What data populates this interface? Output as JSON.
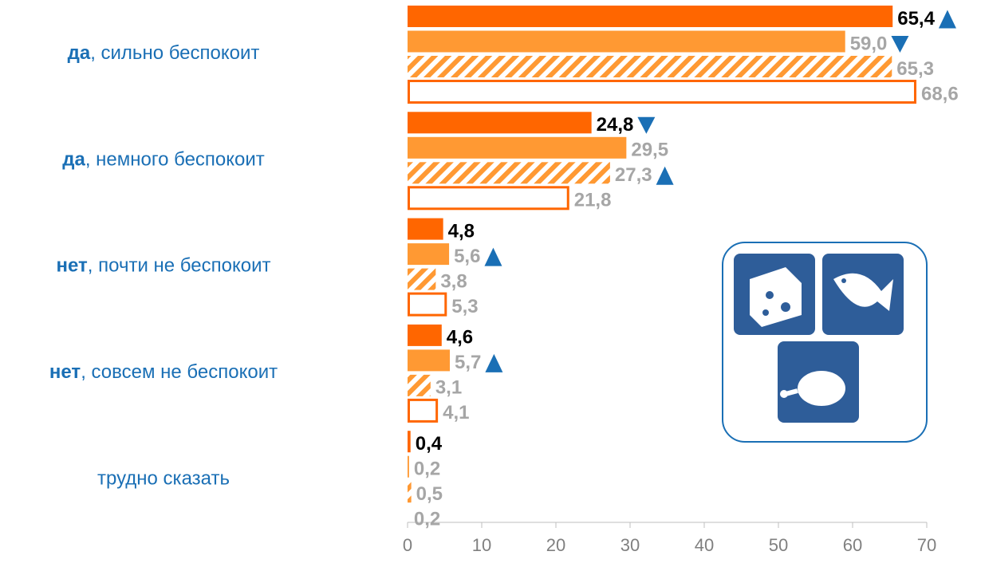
{
  "chart_data": {
    "type": "barh",
    "categories": [
      "да, сильно беспокоит",
      "да, немного беспокоит",
      "нет, почти не беспокоит",
      "нет, совсем не беспокоит",
      "трудно сказать"
    ],
    "series": [
      {
        "color": "#ff6600",
        "style": "solid",
        "values": [
          65.4,
          24.8,
          4.8,
          4.6,
          0.4
        ],
        "value_labels": [
          "65,4",
          "24,8",
          "4,8",
          "4,6",
          "0,4"
        ],
        "arrows": [
          "up",
          "down",
          null,
          null,
          null
        ]
      },
      {
        "color": "#ff9933",
        "style": "solid",
        "values": [
          59.0,
          29.5,
          5.6,
          5.7,
          0.2
        ],
        "value_labels": [
          "59,0",
          "29,5",
          "5,6",
          "5,7",
          "0,2"
        ],
        "arrows": [
          "down",
          null,
          "up",
          "up",
          null
        ]
      },
      {
        "color": "#ff9933",
        "style": "hatched",
        "values": [
          65.3,
          27.3,
          3.8,
          3.1,
          0.5
        ],
        "value_labels": [
          "65,3",
          "27,3",
          "3,8",
          "3,1",
          "0,5"
        ],
        "arrows": [
          null,
          "up",
          null,
          null,
          null
        ]
      },
      {
        "color": "#ff6600",
        "style": "outline",
        "values": [
          68.6,
          21.8,
          5.3,
          4.1,
          0.2
        ],
        "value_labels": [
          "68,6",
          "21,8",
          "5,3",
          "4,1",
          "0,2"
        ],
        "arrows": [
          null,
          null,
          null,
          null,
          null
        ]
      }
    ],
    "xlim": [
      0,
      70
    ],
    "xticks": [
      0,
      10,
      20,
      30,
      40,
      50,
      60,
      70
    ]
  }
}
